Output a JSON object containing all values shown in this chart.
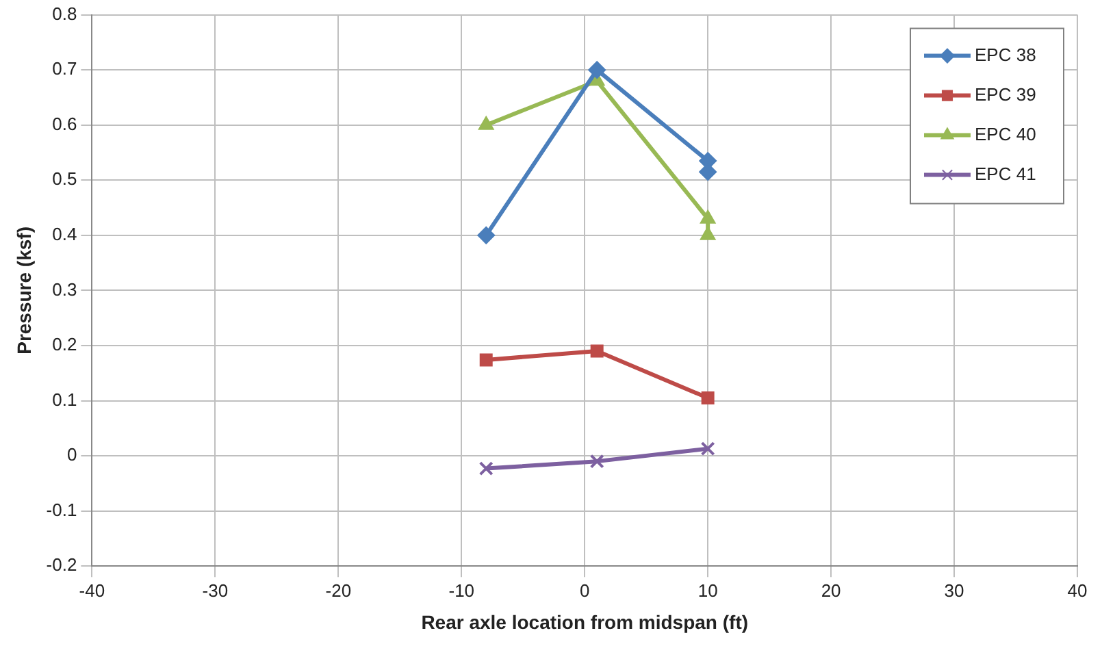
{
  "chart_data": {
    "type": "line",
    "xlabel": "Rear axle location from midspan (ft)",
    "ylabel": "Pressure (ksf)",
    "xlim": [
      -40,
      40
    ],
    "xticks": [
      -40,
      -30,
      -20,
      -10,
      0,
      10,
      20,
      30,
      40
    ],
    "ylim": [
      -0.2,
      0.8
    ],
    "yticks": [
      -0.2,
      -0.1,
      0,
      0.1,
      0.2,
      0.3,
      0.4,
      0.5,
      0.6,
      0.7,
      0.8
    ],
    "grid": true,
    "legend": "top right",
    "series": [
      {
        "name": "EPC 38",
        "color": "#4a7ebb",
        "marker": "diamond",
        "x": [
          -8,
          1,
          10,
          10
        ],
        "values": [
          0.4,
          0.7,
          0.535,
          0.515
        ]
      },
      {
        "name": "EPC 39",
        "color": "#be4b48",
        "marker": "square",
        "x": [
          -8,
          1,
          10
        ],
        "values": [
          0.174,
          0.19,
          0.105
        ]
      },
      {
        "name": "EPC 40",
        "color": "#98b954",
        "marker": "triangle",
        "x": [
          -8,
          1,
          10,
          10
        ],
        "values": [
          0.6,
          0.68,
          0.43,
          0.4
        ]
      },
      {
        "name": "EPC 41",
        "color": "#7d60a0",
        "marker": "cross",
        "x": [
          -8,
          1,
          10
        ],
        "values": [
          -0.023,
          -0.01,
          0.013
        ]
      }
    ]
  }
}
